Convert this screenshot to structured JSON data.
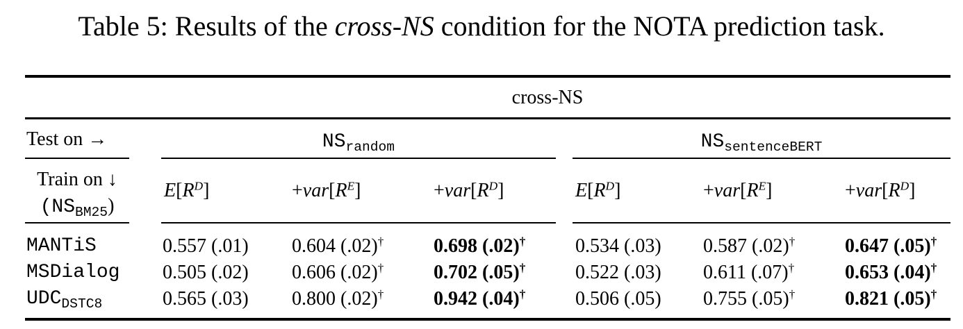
{
  "caption": {
    "prefix": "Table 5: Results of the ",
    "emph": "cross-NS",
    "suffix": " condition for the NOTA prediction task."
  },
  "table": {
    "super_header": "cross-NS",
    "test_on": "Test on →",
    "train_on": "Train on ↓",
    "train_set_base": "(NS",
    "train_set_sub": "BM25",
    "train_set_close": ")",
    "groups": [
      {
        "base": "NS",
        "sub": "random"
      },
      {
        "base": "NS",
        "sub": "sentenceBERT"
      }
    ],
    "columns": [
      {
        "pre": "",
        "fn": "E",
        "open": "[",
        "var": "R",
        "sup": "D",
        "close": "]"
      },
      {
        "pre": "+",
        "fn": "var",
        "open": "[",
        "var": "R",
        "sup": "E",
        "close": "]"
      },
      {
        "pre": "+",
        "fn": "var",
        "open": "[",
        "var": "R",
        "sup": "D",
        "close": "]"
      },
      {
        "pre": "",
        "fn": "E",
        "open": "[",
        "var": "R",
        "sup": "D",
        "close": "]"
      },
      {
        "pre": "+",
        "fn": "var",
        "open": "[",
        "var": "R",
        "sup": "E",
        "close": "]"
      },
      {
        "pre": "+",
        "fn": "var",
        "open": "[",
        "var": "R",
        "sup": "D",
        "close": "]"
      }
    ],
    "rows": [
      {
        "name": "MANTiS",
        "name_sub": "",
        "cells": [
          {
            "text": "0.557 (.01)",
            "bold": false,
            "dagger": ""
          },
          {
            "text": "0.604 (.02)",
            "bold": false,
            "dagger": "†"
          },
          {
            "text": "0.698 (.02)",
            "bold": true,
            "dagger": "†"
          },
          {
            "text": "0.534 (.03)",
            "bold": false,
            "dagger": ""
          },
          {
            "text": "0.587 (.02)",
            "bold": false,
            "dagger": "†"
          },
          {
            "text": "0.647 (.05)",
            "bold": true,
            "dagger": "†"
          }
        ]
      },
      {
        "name": "MSDialog",
        "name_sub": "",
        "cells": [
          {
            "text": "0.505 (.02)",
            "bold": false,
            "dagger": ""
          },
          {
            "text": "0.606 (.02)",
            "bold": false,
            "dagger": "†"
          },
          {
            "text": "0.702 (.05)",
            "bold": true,
            "dagger": "†"
          },
          {
            "text": "0.522 (.03)",
            "bold": false,
            "dagger": ""
          },
          {
            "text": "0.611 (.07)",
            "bold": false,
            "dagger": "†"
          },
          {
            "text": "0.653 (.04)",
            "bold": true,
            "dagger": "†"
          }
        ]
      },
      {
        "name": "UDC",
        "name_sub": "DSTC8",
        "cells": [
          {
            "text": "0.565 (.03)",
            "bold": false,
            "dagger": ""
          },
          {
            "text": "0.800 (.02)",
            "bold": false,
            "dagger": "†"
          },
          {
            "text": "0.942 (.04)",
            "bold": true,
            "dagger": "†"
          },
          {
            "text": "0.506 (.05)",
            "bold": false,
            "dagger": ""
          },
          {
            "text": "0.755 (.05)",
            "bold": false,
            "dagger": "†"
          },
          {
            "text": "0.821 (.05)",
            "bold": true,
            "dagger": "†"
          }
        ]
      }
    ]
  }
}
